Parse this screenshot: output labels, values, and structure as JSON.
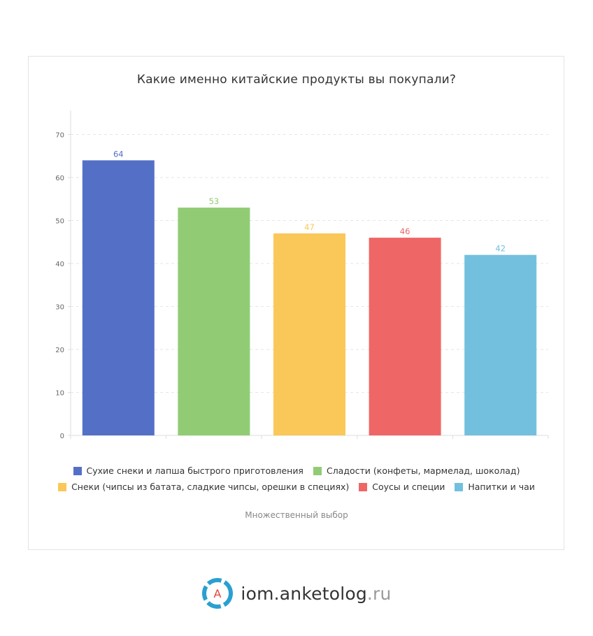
{
  "chart_data": {
    "type": "bar",
    "title": "Какие именно китайские продукты вы покупали?",
    "categories": [
      "Сухие снеки и лапша быстрого приготовления",
      "Сладости (конфеты, мармелад, шоколад)",
      "Снеки (чипсы из батата, сладкие чипсы, орешки в специях)",
      "Соусы и специи",
      "Напитки и чаи"
    ],
    "values": [
      64,
      53,
      47,
      46,
      42
    ],
    "colors": [
      "#5470c6",
      "#91cc75",
      "#fac858",
      "#ee6666",
      "#73c0de"
    ],
    "ylim": [
      0,
      70
    ],
    "yticks": [
      0,
      10,
      20,
      30,
      40,
      50,
      60,
      70
    ],
    "grid": true,
    "legend_position": "bottom",
    "note": "Множественный выбор"
  },
  "brand": {
    "name": "iom.anketolog",
    "tld": ".ru",
    "logo_letter": "A"
  }
}
